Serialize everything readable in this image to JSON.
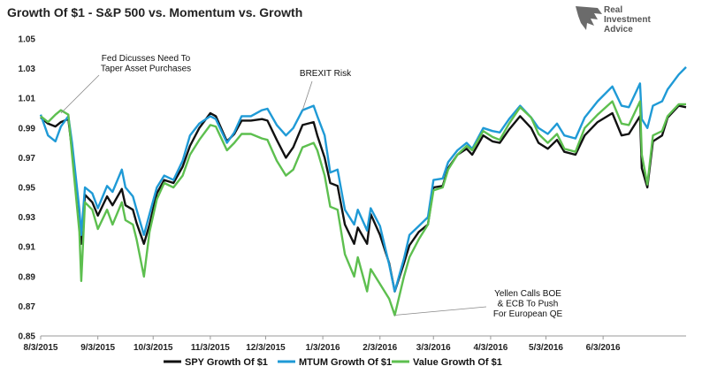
{
  "logo": {
    "line1": "Real",
    "line2": "Investment",
    "line3": "Advice",
    "color": "#5a5a5a"
  },
  "chart_data": {
    "type": "line",
    "title": "Growth Of $1 - S&P 500 vs. Momentum vs. Growth",
    "xlabel": "",
    "ylabel": "",
    "ylim": [
      0.85,
      1.05
    ],
    "yticks": [
      "0.85",
      "0.87",
      "0.89",
      "0.91",
      "0.93",
      "0.95",
      "0.97",
      "0.99",
      "1.01",
      "1.03",
      "1.05"
    ],
    "xticks": [
      "8/3/2015",
      "9/3/2015",
      "10/3/2015",
      "11/3/2015",
      "12/3/2015",
      "1/3/2016",
      "2/3/2016",
      "3/3/2016",
      "4/3/2016",
      "5/3/2016",
      "6/3/2016"
    ],
    "xlim": [
      "2015-08-03",
      "2016-07-18"
    ],
    "grid": false,
    "legend": "bottom",
    "series": [
      {
        "name": "SPY Growth Of $1",
        "color": "#111111",
        "points": [
          [
            "2015-08-03",
            0.997
          ],
          [
            "2015-08-07",
            0.993
          ],
          [
            "2015-08-11",
            0.991
          ],
          [
            "2015-08-14",
            0.994
          ],
          [
            "2015-08-18",
            0.996
          ],
          [
            "2015-08-20",
            0.975
          ],
          [
            "2015-08-24",
            0.93
          ],
          [
            "2015-08-25",
            0.912
          ],
          [
            "2015-08-27",
            0.945
          ],
          [
            "2015-08-31",
            0.94
          ],
          [
            "2015-09-03",
            0.931
          ],
          [
            "2015-09-08",
            0.944
          ],
          [
            "2015-09-11",
            0.938
          ],
          [
            "2015-09-16",
            0.949
          ],
          [
            "2015-09-18",
            0.938
          ],
          [
            "2015-09-22",
            0.935
          ],
          [
            "2015-09-24",
            0.926
          ],
          [
            "2015-09-28",
            0.912
          ],
          [
            "2015-10-01",
            0.925
          ],
          [
            "2015-10-05",
            0.946
          ],
          [
            "2015-10-09",
            0.955
          ],
          [
            "2015-10-14",
            0.953
          ],
          [
            "2015-10-19",
            0.964
          ],
          [
            "2015-10-23",
            0.978
          ],
          [
            "2015-10-28",
            0.99
          ],
          [
            "2015-11-03",
            1.0
          ],
          [
            "2015-11-06",
            0.998
          ],
          [
            "2015-11-12",
            0.981
          ],
          [
            "2015-11-16",
            0.986
          ],
          [
            "2015-11-20",
            0.995
          ],
          [
            "2015-11-25",
            0.995
          ],
          [
            "2015-12-01",
            0.996
          ],
          [
            "2015-12-04",
            0.995
          ],
          [
            "2015-12-09",
            0.982
          ],
          [
            "2015-12-14",
            0.97
          ],
          [
            "2015-12-18",
            0.977
          ],
          [
            "2015-12-23",
            0.992
          ],
          [
            "2015-12-29",
            0.994
          ],
          [
            "2015-12-31",
            0.985
          ],
          [
            "2016-01-04",
            0.97
          ],
          [
            "2016-01-07",
            0.953
          ],
          [
            "2016-01-11",
            0.951
          ],
          [
            "2016-01-15",
            0.925
          ],
          [
            "2016-01-20",
            0.912
          ],
          [
            "2016-01-22",
            0.923
          ],
          [
            "2016-01-27",
            0.912
          ],
          [
            "2016-01-29",
            0.932
          ],
          [
            "2016-02-03",
            0.918
          ],
          [
            "2016-02-08",
            0.899
          ],
          [
            "2016-02-11",
            0.88
          ],
          [
            "2016-02-16",
            0.899
          ],
          [
            "2016-02-19",
            0.911
          ],
          [
            "2016-02-24",
            0.92
          ],
          [
            "2016-02-29",
            0.925
          ],
          [
            "2016-03-03",
            0.95
          ],
          [
            "2016-03-08",
            0.951
          ],
          [
            "2016-03-11",
            0.963
          ],
          [
            "2016-03-16",
            0.972
          ],
          [
            "2016-03-21",
            0.976
          ],
          [
            "2016-03-24",
            0.972
          ],
          [
            "2016-03-30",
            0.985
          ],
          [
            "2016-04-04",
            0.981
          ],
          [
            "2016-04-08",
            0.98
          ],
          [
            "2016-04-13",
            0.989
          ],
          [
            "2016-04-19",
            0.998
          ],
          [
            "2016-04-25",
            0.99
          ],
          [
            "2016-04-29",
            0.98
          ],
          [
            "2016-05-04",
            0.976
          ],
          [
            "2016-05-09",
            0.982
          ],
          [
            "2016-05-13",
            0.974
          ],
          [
            "2016-05-19",
            0.972
          ],
          [
            "2016-05-24",
            0.985
          ],
          [
            "2016-05-31",
            0.994
          ],
          [
            "2016-06-08",
            1.0
          ],
          [
            "2016-06-13",
            0.985
          ],
          [
            "2016-06-17",
            0.986
          ],
          [
            "2016-06-23",
            0.998
          ],
          [
            "2016-06-24",
            0.963
          ],
          [
            "2016-06-27",
            0.95
          ],
          [
            "2016-06-30",
            0.981
          ],
          [
            "2016-07-05",
            0.985
          ],
          [
            "2016-07-08",
            0.997
          ],
          [
            "2016-07-14",
            1.005
          ],
          [
            "2016-07-18",
            1.004
          ]
        ]
      },
      {
        "name": "MTUM Growth Of $1",
        "color": "#1f9ad6",
        "points": [
          [
            "2015-08-03",
            0.999
          ],
          [
            "2015-08-07",
            0.985
          ],
          [
            "2015-08-11",
            0.981
          ],
          [
            "2015-08-14",
            0.991
          ],
          [
            "2015-08-18",
            0.998
          ],
          [
            "2015-08-20",
            0.98
          ],
          [
            "2015-08-24",
            0.935
          ],
          [
            "2015-08-25",
            0.918
          ],
          [
            "2015-08-27",
            0.95
          ],
          [
            "2015-08-31",
            0.946
          ],
          [
            "2015-09-03",
            0.936
          ],
          [
            "2015-09-08",
            0.951
          ],
          [
            "2015-09-11",
            0.947
          ],
          [
            "2015-09-16",
            0.962
          ],
          [
            "2015-09-18",
            0.95
          ],
          [
            "2015-09-22",
            0.944
          ],
          [
            "2015-09-24",
            0.935
          ],
          [
            "2015-09-28",
            0.918
          ],
          [
            "2015-10-01",
            0.932
          ],
          [
            "2015-10-05",
            0.95
          ],
          [
            "2015-10-09",
            0.958
          ],
          [
            "2015-10-14",
            0.955
          ],
          [
            "2015-10-19",
            0.968
          ],
          [
            "2015-10-23",
            0.985
          ],
          [
            "2015-10-28",
            0.993
          ],
          [
            "2015-11-03",
            0.998
          ],
          [
            "2015-11-06",
            0.996
          ],
          [
            "2015-11-12",
            0.98
          ],
          [
            "2015-11-16",
            0.987
          ],
          [
            "2015-11-20",
            0.998
          ],
          [
            "2015-11-25",
            0.998
          ],
          [
            "2015-12-01",
            1.002
          ],
          [
            "2015-12-04",
            1.003
          ],
          [
            "2015-12-09",
            0.992
          ],
          [
            "2015-12-14",
            0.985
          ],
          [
            "2015-12-18",
            0.99
          ],
          [
            "2015-12-23",
            1.002
          ],
          [
            "2015-12-29",
            1.005
          ],
          [
            "2015-12-31",
            0.998
          ],
          [
            "2016-01-04",
            0.985
          ],
          [
            "2016-01-07",
            0.96
          ],
          [
            "2016-01-11",
            0.962
          ],
          [
            "2016-01-15",
            0.935
          ],
          [
            "2016-01-20",
            0.925
          ],
          [
            "2016-01-22",
            0.935
          ],
          [
            "2016-01-27",
            0.921
          ],
          [
            "2016-01-29",
            0.936
          ],
          [
            "2016-02-03",
            0.924
          ],
          [
            "2016-02-08",
            0.898
          ],
          [
            "2016-02-11",
            0.88
          ],
          [
            "2016-02-16",
            0.902
          ],
          [
            "2016-02-19",
            0.918
          ],
          [
            "2016-02-24",
            0.924
          ],
          [
            "2016-02-29",
            0.93
          ],
          [
            "2016-03-03",
            0.955
          ],
          [
            "2016-03-08",
            0.956
          ],
          [
            "2016-03-11",
            0.967
          ],
          [
            "2016-03-16",
            0.975
          ],
          [
            "2016-03-21",
            0.98
          ],
          [
            "2016-03-24",
            0.976
          ],
          [
            "2016-03-30",
            0.99
          ],
          [
            "2016-04-04",
            0.988
          ],
          [
            "2016-04-08",
            0.987
          ],
          [
            "2016-04-13",
            0.996
          ],
          [
            "2016-04-19",
            1.005
          ],
          [
            "2016-04-25",
            0.997
          ],
          [
            "2016-04-29",
            0.99
          ],
          [
            "2016-05-04",
            0.986
          ],
          [
            "2016-05-09",
            0.993
          ],
          [
            "2016-05-13",
            0.985
          ],
          [
            "2016-05-19",
            0.983
          ],
          [
            "2016-05-24",
            0.997
          ],
          [
            "2016-05-31",
            1.008
          ],
          [
            "2016-06-08",
            1.018
          ],
          [
            "2016-06-13",
            1.005
          ],
          [
            "2016-06-17",
            1.004
          ],
          [
            "2016-06-23",
            1.02
          ],
          [
            "2016-06-24",
            0.996
          ],
          [
            "2016-06-27",
            0.99
          ],
          [
            "2016-06-30",
            1.005
          ],
          [
            "2016-07-05",
            1.008
          ],
          [
            "2016-07-08",
            1.016
          ],
          [
            "2016-07-14",
            1.026
          ],
          [
            "2016-07-18",
            1.031
          ]
        ]
      },
      {
        "name": "Value Growth Of $1",
        "color": "#5dbf4f",
        "points": [
          [
            "2015-08-03",
            0.998
          ],
          [
            "2015-08-07",
            0.994
          ],
          [
            "2015-08-11",
            0.999
          ],
          [
            "2015-08-14",
            1.002
          ],
          [
            "2015-08-18",
            0.999
          ],
          [
            "2015-08-20",
            0.972
          ],
          [
            "2015-08-24",
            0.92
          ],
          [
            "2015-08-25",
            0.887
          ],
          [
            "2015-08-27",
            0.94
          ],
          [
            "2015-08-31",
            0.935
          ],
          [
            "2015-09-03",
            0.922
          ],
          [
            "2015-09-08",
            0.935
          ],
          [
            "2015-09-11",
            0.925
          ],
          [
            "2015-09-16",
            0.94
          ],
          [
            "2015-09-18",
            0.928
          ],
          [
            "2015-09-22",
            0.925
          ],
          [
            "2015-09-24",
            0.915
          ],
          [
            "2015-09-28",
            0.89
          ],
          [
            "2015-10-01",
            0.92
          ],
          [
            "2015-10-05",
            0.942
          ],
          [
            "2015-10-09",
            0.953
          ],
          [
            "2015-10-14",
            0.95
          ],
          [
            "2015-10-19",
            0.958
          ],
          [
            "2015-10-23",
            0.972
          ],
          [
            "2015-10-28",
            0.982
          ],
          [
            "2015-11-03",
            0.992
          ],
          [
            "2015-11-06",
            0.991
          ],
          [
            "2015-11-12",
            0.975
          ],
          [
            "2015-11-16",
            0.98
          ],
          [
            "2015-11-20",
            0.986
          ],
          [
            "2015-11-25",
            0.986
          ],
          [
            "2015-12-01",
            0.983
          ],
          [
            "2015-12-04",
            0.982
          ],
          [
            "2015-12-09",
            0.968
          ],
          [
            "2015-12-14",
            0.958
          ],
          [
            "2015-12-18",
            0.962
          ],
          [
            "2015-12-23",
            0.977
          ],
          [
            "2015-12-29",
            0.98
          ],
          [
            "2015-12-31",
            0.975
          ],
          [
            "2016-01-04",
            0.958
          ],
          [
            "2016-01-07",
            0.937
          ],
          [
            "2016-01-11",
            0.935
          ],
          [
            "2016-01-15",
            0.905
          ],
          [
            "2016-01-20",
            0.89
          ],
          [
            "2016-01-22",
            0.903
          ],
          [
            "2016-01-27",
            0.88
          ],
          [
            "2016-01-29",
            0.895
          ],
          [
            "2016-02-03",
            0.885
          ],
          [
            "2016-02-08",
            0.875
          ],
          [
            "2016-02-11",
            0.864
          ],
          [
            "2016-02-16",
            0.89
          ],
          [
            "2016-02-19",
            0.903
          ],
          [
            "2016-02-24",
            0.915
          ],
          [
            "2016-02-29",
            0.925
          ],
          [
            "2016-03-03",
            0.948
          ],
          [
            "2016-03-08",
            0.95
          ],
          [
            "2016-03-11",
            0.962
          ],
          [
            "2016-03-16",
            0.972
          ],
          [
            "2016-03-21",
            0.978
          ],
          [
            "2016-03-24",
            0.975
          ],
          [
            "2016-03-30",
            0.988
          ],
          [
            "2016-04-04",
            0.984
          ],
          [
            "2016-04-08",
            0.982
          ],
          [
            "2016-04-13",
            0.993
          ],
          [
            "2016-04-19",
            1.004
          ],
          [
            "2016-04-25",
            0.997
          ],
          [
            "2016-04-29",
            0.986
          ],
          [
            "2016-05-04",
            0.98
          ],
          [
            "2016-05-09",
            0.986
          ],
          [
            "2016-05-13",
            0.976
          ],
          [
            "2016-05-19",
            0.974
          ],
          [
            "2016-05-24",
            0.99
          ],
          [
            "2016-05-31",
            0.999
          ],
          [
            "2016-06-08",
            1.008
          ],
          [
            "2016-06-13",
            0.993
          ],
          [
            "2016-06-17",
            0.992
          ],
          [
            "2016-06-23",
            1.008
          ],
          [
            "2016-06-24",
            0.972
          ],
          [
            "2016-06-27",
            0.952
          ],
          [
            "2016-06-30",
            0.985
          ],
          [
            "2016-07-05",
            0.988
          ],
          [
            "2016-07-08",
            0.998
          ],
          [
            "2016-07-14",
            1.006
          ],
          [
            "2016-07-18",
            1.006
          ]
        ]
      }
    ],
    "annotations": [
      {
        "lines": [
          "Fed Dicusses Need To",
          "Taper Asset Purchases"
        ],
        "x": "2015-08-14",
        "y": 1.0,
        "side": "top"
      },
      {
        "lines": [
          "BREXIT Risk"
        ],
        "x": "2015-12-23",
        "y": 1.002,
        "side": "top"
      },
      {
        "lines": [
          "Yellen Calls BOE",
          "& ECB To Push",
          "For European QE"
        ],
        "x": "2016-02-11",
        "y": 0.864,
        "side": "bottom"
      }
    ]
  }
}
